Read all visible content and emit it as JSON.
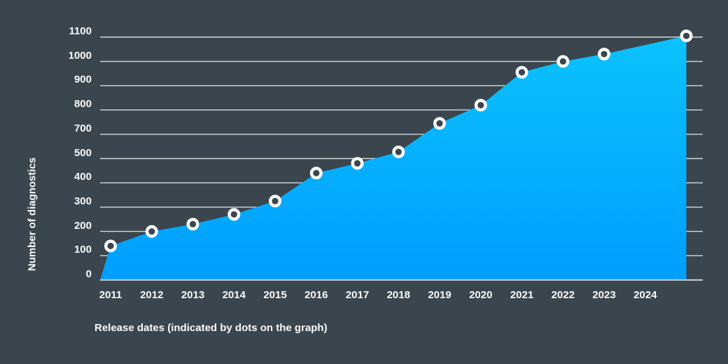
{
  "chart_data": {
    "type": "area",
    "title": "",
    "xlabel": "Release dates (indicated by dots on the graph)",
    "ylabel": "Number of diagnostics",
    "grid": true,
    "legend": "none",
    "x_tick_labels": [
      "2011",
      "2012",
      "2013",
      "2014",
      "2015",
      "2016",
      "2017",
      "2018",
      "2019",
      "2020",
      "2021",
      "2022",
      "2023",
      "2024"
    ],
    "y_tick_labels": [
      "0",
      "100",
      "200",
      "300",
      "400",
      "500",
      "700",
      "800",
      "900",
      "1000",
      "1100"
    ],
    "y_axis_note": "gridlines evenly spaced; label 600 is absent on the rendered axis",
    "points": [
      {
        "label": "2011",
        "slot": 0,
        "value": 140
      },
      {
        "label": "2012",
        "slot": 1,
        "value": 200
      },
      {
        "label": "2013",
        "slot": 2,
        "value": 230
      },
      {
        "label": "2014",
        "slot": 3,
        "value": 270
      },
      {
        "label": "2015",
        "slot": 4,
        "value": 325
      },
      {
        "label": "2016",
        "slot": 5,
        "value": 440
      },
      {
        "label": "2017",
        "slot": 6,
        "value": 480
      },
      {
        "label": "2018",
        "slot": 7,
        "value": 555
      },
      {
        "label": "2019",
        "slot": 8,
        "value": 745
      },
      {
        "label": "2020",
        "slot": 9,
        "value": 820
      },
      {
        "label": "2021",
        "slot": 10,
        "value": 955
      },
      {
        "label": "2022",
        "slot": 11,
        "value": 1000
      },
      {
        "label": "2023",
        "slot": 12,
        "value": 1030
      },
      {
        "label": "",
        "slot": 14,
        "value": 1105
      }
    ],
    "colors": {
      "background": "#3A454D",
      "gridline": "#E3E6E7",
      "area_top": "#0CC2FC",
      "area_bottom": "#009EFE",
      "dot_fill": "#3A454D",
      "dot_stroke": "#FFFFFF",
      "text": "#FAFBFB"
    }
  }
}
